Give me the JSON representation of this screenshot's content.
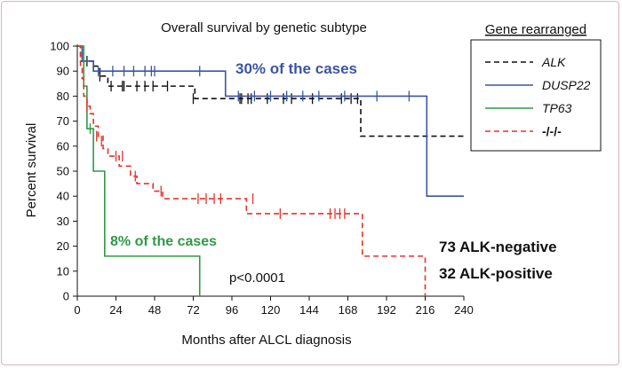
{
  "chart_data": {
    "type": "line",
    "title": "Overall survival by genetic subtype",
    "xlabel": "Months after ALCL diagnosis",
    "ylabel": "Percent survival",
    "xlim": [
      0,
      240
    ],
    "ylim": [
      0,
      100
    ],
    "xticks": [
      0,
      24,
      48,
      72,
      96,
      120,
      144,
      168,
      192,
      216,
      240
    ],
    "yticks": [
      0,
      10,
      20,
      30,
      40,
      50,
      60,
      70,
      80,
      90,
      100
    ],
    "legend": {
      "title": "Gene rearranged",
      "position": "top-right",
      "entries": [
        {
          "label": "ALK",
          "italic": true
        },
        {
          "label": "DUSP22",
          "italic": true
        },
        {
          "label": "TP63",
          "italic": true
        },
        {
          "label": "-/-/-",
          "italic": false
        }
      ]
    },
    "series": [
      {
        "name": "ALK",
        "color": "#111111",
        "dash": "dashed",
        "steps": [
          [
            0,
            100
          ],
          [
            2,
            94
          ],
          [
            8,
            94
          ],
          [
            10,
            92
          ],
          [
            14,
            88
          ],
          [
            19,
            84
          ],
          [
            73,
            79
          ],
          [
            110,
            79
          ],
          [
            176,
            64
          ],
          [
            240,
            64
          ]
        ],
        "censored": [
          [
            6,
            94
          ],
          [
            10,
            92
          ],
          [
            14,
            88
          ],
          [
            21,
            84
          ],
          [
            28,
            84
          ],
          [
            29,
            84
          ],
          [
            37,
            84
          ],
          [
            42,
            84
          ],
          [
            47,
            84
          ],
          [
            56,
            84
          ],
          [
            72,
            79
          ],
          [
            101,
            79
          ],
          [
            102,
            79
          ],
          [
            106,
            79
          ],
          [
            108,
            79
          ],
          [
            118,
            79
          ],
          [
            128,
            79
          ],
          [
            133,
            79
          ],
          [
            146,
            79
          ],
          [
            164,
            79
          ],
          [
            170,
            79
          ],
          [
            174,
            79
          ]
        ]
      },
      {
        "name": "DUSP22",
        "color": "#3b55a3",
        "dash": "solid",
        "steps": [
          [
            0,
            100
          ],
          [
            3,
            94
          ],
          [
            10,
            90
          ],
          [
            92,
            80
          ],
          [
            217,
            40
          ],
          [
            240,
            40
          ]
        ],
        "censored": [
          [
            13,
            90
          ],
          [
            22,
            90
          ],
          [
            29,
            90
          ],
          [
            35,
            90
          ],
          [
            42,
            90
          ],
          [
            46,
            90
          ],
          [
            48,
            90
          ],
          [
            76,
            90
          ],
          [
            100,
            80
          ],
          [
            110,
            80
          ],
          [
            120,
            80
          ],
          [
            130,
            80
          ],
          [
            140,
            80
          ],
          [
            150,
            80
          ],
          [
            166,
            80
          ],
          [
            186,
            80
          ],
          [
            206,
            80
          ]
        ]
      },
      {
        "name": "TP63",
        "color": "#2f9a45",
        "dash": "solid",
        "steps": [
          [
            0,
            100
          ],
          [
            4,
            84
          ],
          [
            6,
            67
          ],
          [
            10,
            50
          ],
          [
            17,
            16
          ],
          [
            76,
            0
          ]
        ],
        "censored": [
          [
            8,
            67
          ]
        ]
      },
      {
        "name": "-/-/-",
        "color": "#e8322b",
        "dash": "dashed",
        "steps": [
          [
            0,
            100
          ],
          [
            2,
            92
          ],
          [
            3,
            87
          ],
          [
            4,
            80
          ],
          [
            6,
            76
          ],
          [
            8,
            73
          ],
          [
            10,
            68
          ],
          [
            13,
            64
          ],
          [
            16,
            59
          ],
          [
            19,
            56
          ],
          [
            26,
            52
          ],
          [
            33,
            48
          ],
          [
            37,
            45
          ],
          [
            47,
            42
          ],
          [
            53,
            39
          ],
          [
            105,
            33
          ],
          [
            177,
            16
          ],
          [
            216,
            0
          ]
        ],
        "censored": [
          [
            6,
            76
          ],
          [
            12,
            64
          ],
          [
            15,
            62
          ],
          [
            24,
            56
          ],
          [
            28,
            56
          ],
          [
            36,
            48
          ],
          [
            52,
            42
          ],
          [
            75,
            39
          ],
          [
            80,
            39
          ],
          [
            85,
            39
          ],
          [
            89,
            39
          ],
          [
            109,
            39
          ],
          [
            126,
            33
          ],
          [
            157,
            33
          ],
          [
            160,
            33
          ],
          [
            163,
            33
          ],
          [
            166,
            33
          ]
        ]
      }
    ],
    "annotations": {
      "dusp22_share": "30% of the cases",
      "tp63_share": "8% of the cases",
      "p_value": "p<0.0001",
      "alk_negative": "73 ALK-negative",
      "alk_positive": "32 ALK-positive"
    }
  }
}
